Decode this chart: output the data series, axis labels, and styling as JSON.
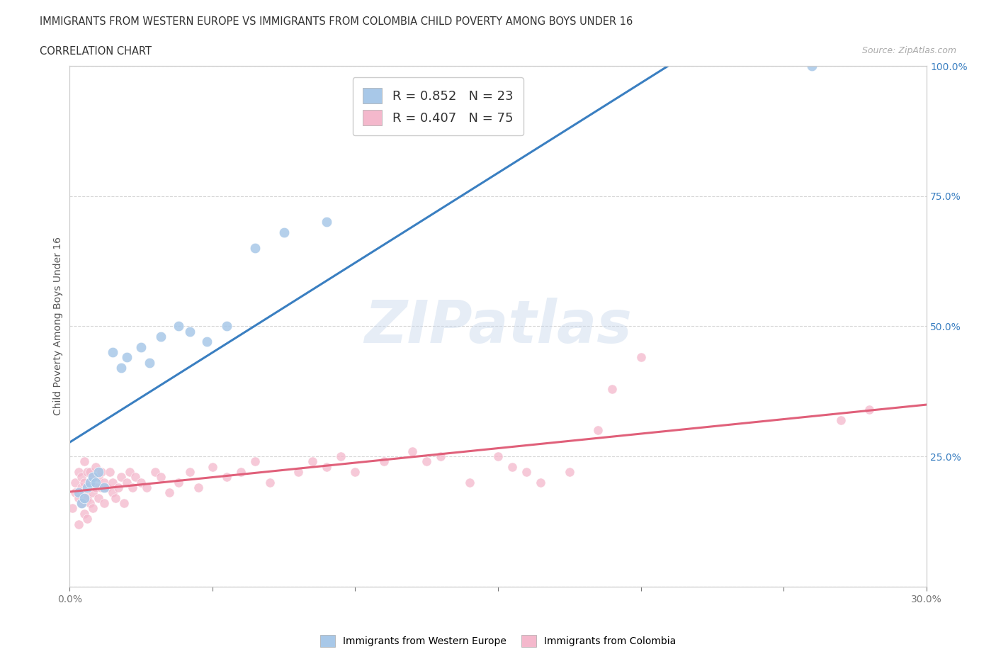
{
  "title1": "IMMIGRANTS FROM WESTERN EUROPE VS IMMIGRANTS FROM COLOMBIA CHILD POVERTY AMONG BOYS UNDER 16",
  "title2": "CORRELATION CHART",
  "source": "Source: ZipAtlas.com",
  "ylabel": "Child Poverty Among Boys Under 16",
  "xlim": [
    0,
    0.3
  ],
  "ylim": [
    0,
    1.0
  ],
  "blue_color": "#a8c8e8",
  "pink_color": "#f4b8cc",
  "blue_line_color": "#3a7fc1",
  "pink_line_color": "#e0607a",
  "legend_blue_label": "R = 0.852   N = 23",
  "legend_pink_label": "R = 0.407   N = 75",
  "watermark": "ZIPatlas",
  "western_europe_x": [
    0.003,
    0.004,
    0.005,
    0.006,
    0.007,
    0.008,
    0.009,
    0.01,
    0.012,
    0.015,
    0.018,
    0.02,
    0.025,
    0.028,
    0.032,
    0.038,
    0.042,
    0.048,
    0.055,
    0.065,
    0.075,
    0.09,
    0.26
  ],
  "western_europe_y": [
    0.18,
    0.16,
    0.17,
    0.19,
    0.2,
    0.21,
    0.2,
    0.22,
    0.19,
    0.45,
    0.42,
    0.44,
    0.46,
    0.43,
    0.48,
    0.5,
    0.49,
    0.47,
    0.5,
    0.65,
    0.68,
    0.7,
    1.0
  ],
  "colombia_x": [
    0.001,
    0.002,
    0.002,
    0.003,
    0.003,
    0.003,
    0.004,
    0.004,
    0.004,
    0.005,
    0.005,
    0.005,
    0.005,
    0.006,
    0.006,
    0.006,
    0.007,
    0.007,
    0.007,
    0.008,
    0.008,
    0.008,
    0.009,
    0.009,
    0.01,
    0.01,
    0.011,
    0.011,
    0.012,
    0.012,
    0.013,
    0.014,
    0.015,
    0.015,
    0.016,
    0.017,
    0.018,
    0.019,
    0.02,
    0.021,
    0.022,
    0.023,
    0.025,
    0.027,
    0.03,
    0.032,
    0.035,
    0.038,
    0.042,
    0.045,
    0.05,
    0.055,
    0.06,
    0.065,
    0.07,
    0.08,
    0.085,
    0.09,
    0.095,
    0.1,
    0.11,
    0.12,
    0.125,
    0.13,
    0.14,
    0.15,
    0.155,
    0.16,
    0.165,
    0.175,
    0.185,
    0.19,
    0.2,
    0.27,
    0.28
  ],
  "colombia_y": [
    0.15,
    0.18,
    0.2,
    0.12,
    0.17,
    0.22,
    0.19,
    0.16,
    0.21,
    0.14,
    0.2,
    0.18,
    0.24,
    0.17,
    0.22,
    0.13,
    0.2,
    0.16,
    0.22,
    0.18,
    0.21,
    0.15,
    0.19,
    0.23,
    0.17,
    0.21,
    0.19,
    0.22,
    0.2,
    0.16,
    0.19,
    0.22,
    0.18,
    0.2,
    0.17,
    0.19,
    0.21,
    0.16,
    0.2,
    0.22,
    0.19,
    0.21,
    0.2,
    0.19,
    0.22,
    0.21,
    0.18,
    0.2,
    0.22,
    0.19,
    0.23,
    0.21,
    0.22,
    0.24,
    0.2,
    0.22,
    0.24,
    0.23,
    0.25,
    0.22,
    0.24,
    0.26,
    0.24,
    0.25,
    0.2,
    0.25,
    0.23,
    0.22,
    0.2,
    0.22,
    0.3,
    0.38,
    0.44,
    0.32,
    0.34
  ]
}
